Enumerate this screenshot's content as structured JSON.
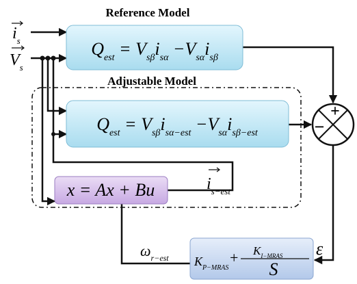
{
  "reference_model": {
    "title": "Reference Model",
    "equation": [
      {
        "t": "Q",
        "sub": "est"
      },
      {
        "t": " = V",
        "sub": "sβ"
      },
      {
        "t": "i",
        "sub": "sα"
      },
      {
        "t": " −V",
        "sub": "sα"
      },
      {
        "t": "i",
        "sub": "sβ"
      }
    ]
  },
  "adjustable_model": {
    "title": "Adjustable Model",
    "equation": [
      {
        "t": "Q",
        "sub": "est"
      },
      {
        "t": " = V",
        "sub": "sβ"
      },
      {
        "t": "i",
        "sub": "sα−est"
      },
      {
        "t": " −V",
        "sub": "sα"
      },
      {
        "t": "i",
        "sub": "sβ−est"
      }
    ]
  },
  "inputs": {
    "current": [
      {
        "t": "i",
        "sub": "s"
      }
    ],
    "voltage": [
      {
        "t": "V",
        "sub": "s"
      }
    ]
  },
  "state_model": {
    "equation": "x = Ax + Bu"
  },
  "estimated_current": [
    {
      "t": "i",
      "sub": "s−est"
    }
  ],
  "estimated_speed": [
    {
      "t": "ω",
      "sub": "r−est"
    }
  ],
  "error": "ε",
  "pi_controller": {
    "kp": [
      {
        "t": "K",
        "sub": "P−MRAS"
      }
    ],
    "plus": "+",
    "ki": [
      {
        "t": "K",
        "sub": "I−MRAS"
      }
    ],
    "s": "S"
  },
  "summing": {
    "plus": "+",
    "minus": "−"
  }
}
